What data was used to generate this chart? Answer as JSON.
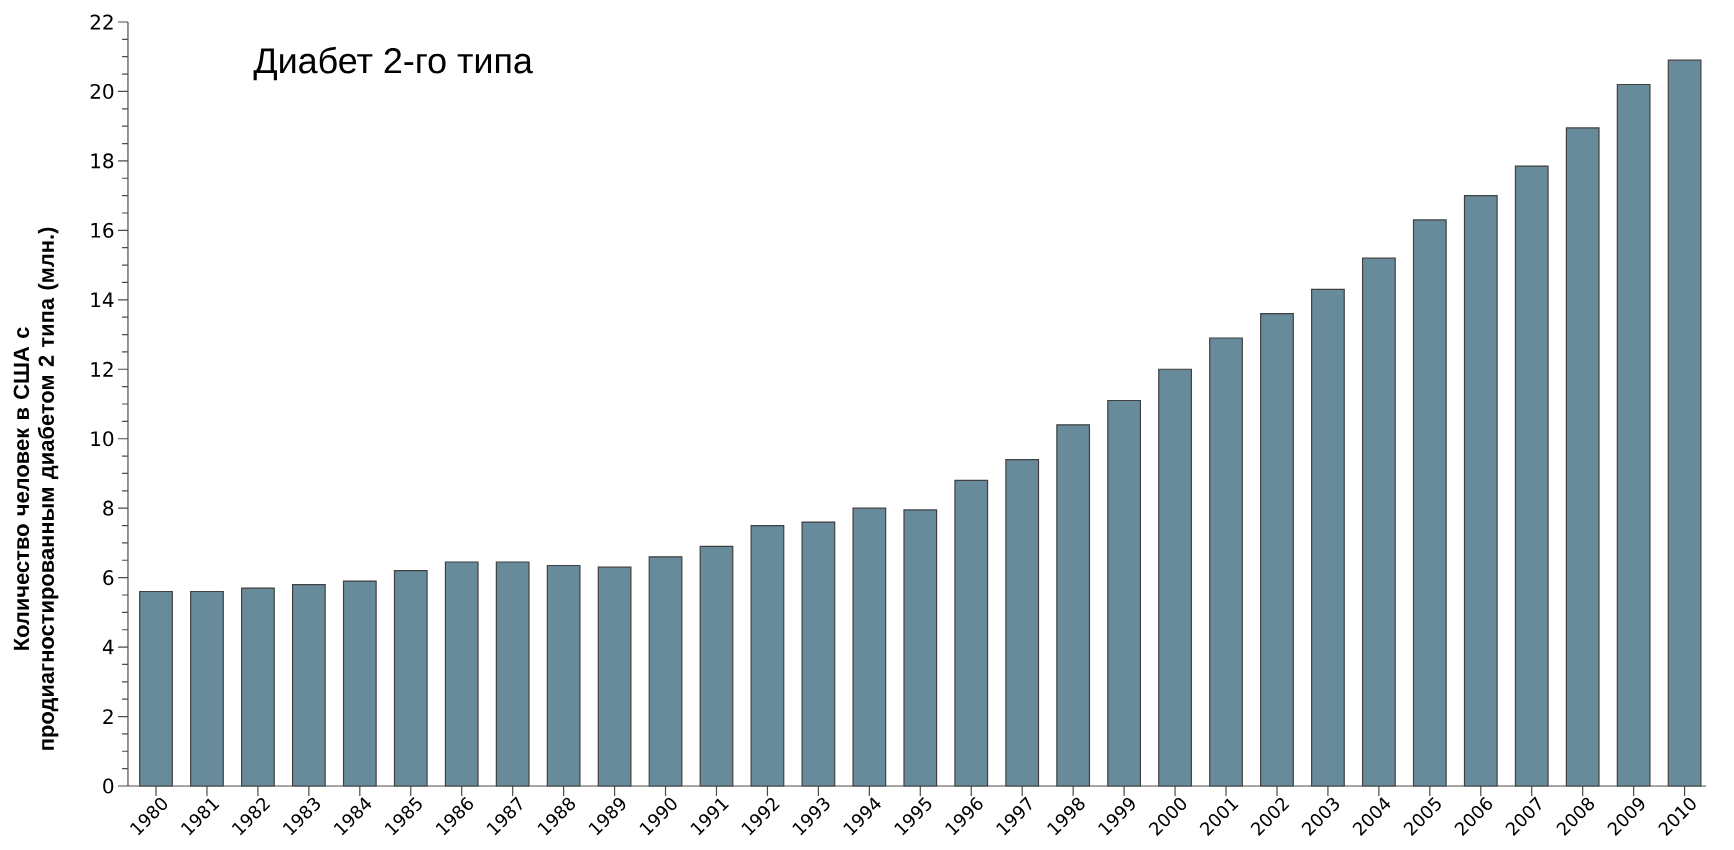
{
  "chart_data": {
    "type": "bar",
    "title": "Диабет 2-го типа",
    "ylabel": "Количество человек в США с продиагностированным диабетом 2 типа (млн.)",
    "categories": [
      "1980",
      "1981",
      "1982",
      "1983",
      "1984",
      "1985",
      "1986",
      "1987",
      "1988",
      "1989",
      "1990",
      "1991",
      "1992",
      "1993",
      "1994",
      "1995",
      "1996",
      "1997",
      "1998",
      "1999",
      "2000",
      "2001",
      "2002",
      "2003",
      "2004",
      "2005",
      "2006",
      "2007",
      "2008",
      "2009",
      "2010"
    ],
    "values": [
      5.6,
      5.6,
      5.7,
      5.8,
      5.9,
      6.2,
      6.45,
      6.45,
      6.35,
      6.3,
      6.6,
      6.9,
      7.5,
      7.6,
      8.0,
      7.95,
      8.8,
      9.4,
      10.4,
      11.1,
      12.0,
      12.9,
      13.6,
      14.3,
      15.2,
      16.3,
      17.0,
      17.85,
      18.95,
      20.2,
      20.9
    ],
    "color": "#678b9a",
    "ylim": [
      0,
      22
    ],
    "yticks": [
      0,
      2,
      4,
      6,
      8,
      10,
      12,
      14,
      16,
      18,
      20,
      22
    ]
  }
}
